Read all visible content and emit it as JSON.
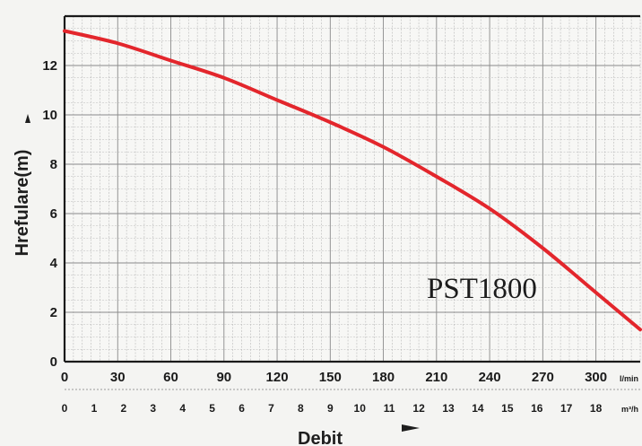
{
  "chart_data": {
    "type": "line",
    "ylabel": "Hrefulare(m)",
    "xlabel": "Debit",
    "x_unit_primary": "l/min",
    "x_unit_secondary": "m³/h",
    "xlim": [
      0,
      325
    ],
    "ylim": [
      0,
      14
    ],
    "x_ticks_primary": [
      "0",
      "30",
      "60",
      "90",
      "120",
      "150",
      "180",
      "210",
      "240",
      "270",
      "300"
    ],
    "x_ticks_secondary": [
      "0",
      "1",
      "2",
      "3",
      "4",
      "5",
      "6",
      "7",
      "8",
      "9",
      "10",
      "11",
      "12",
      "13",
      "14",
      "15",
      "16",
      "17",
      "18"
    ],
    "y_ticks": [
      "0",
      "2",
      "4",
      "6",
      "8",
      "10",
      "12"
    ],
    "grid": true,
    "series": [
      {
        "name": "PST1800",
        "color": "#e3262c",
        "x": [
          0,
          30,
          60,
          90,
          120,
          150,
          180,
          210,
          240,
          270,
          300,
          325
        ],
        "y": [
          13.4,
          12.9,
          12.2,
          11.5,
          10.6,
          9.7,
          8.7,
          7.5,
          6.2,
          4.6,
          2.8,
          1.3
        ]
      }
    ]
  }
}
